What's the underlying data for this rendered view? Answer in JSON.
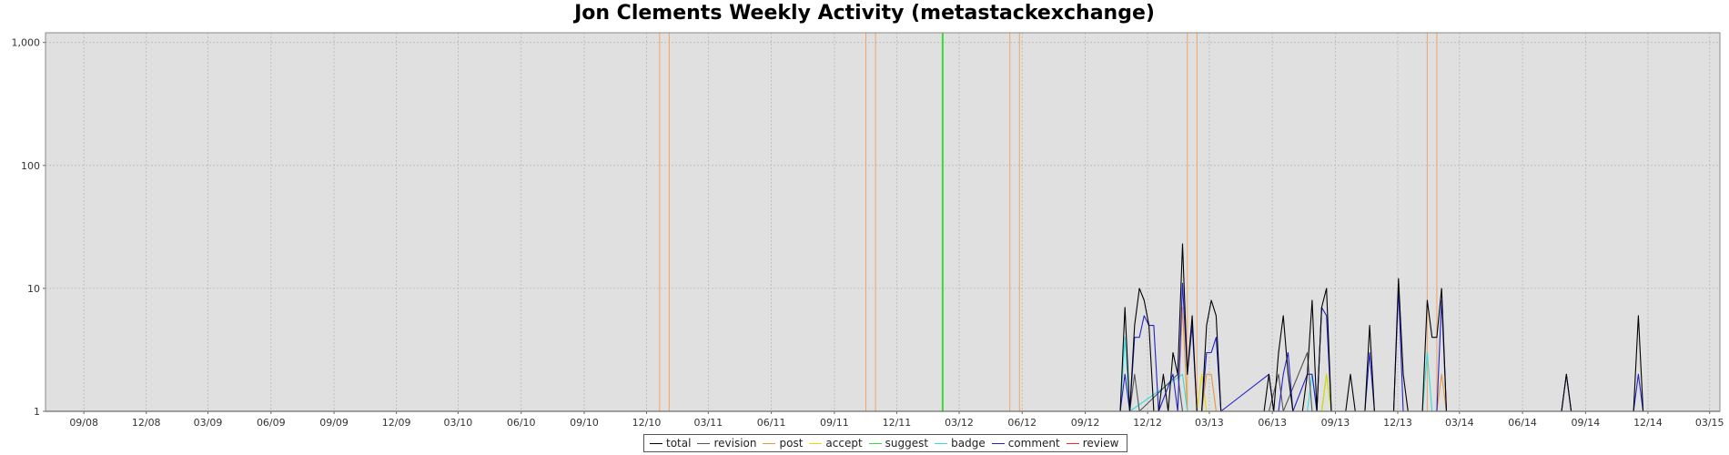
{
  "chart_data": {
    "type": "line",
    "title": "Jon Clements Weekly Activity (metastackexchange)",
    "xlabel": "",
    "ylabel": "",
    "y_scale": "log",
    "ylim": [
      1,
      1200
    ],
    "y_ticks": [
      {
        "value": 1,
        "label": "1"
      },
      {
        "value": 10,
        "label": "10"
      },
      {
        "value": 100,
        "label": "100"
      },
      {
        "value": 1000,
        "label": "1,000"
      }
    ],
    "x_range": [
      "2008-07-07",
      "2015-03-16"
    ],
    "x_ticks": [
      {
        "date": "2008-09-01",
        "label": "09/08"
      },
      {
        "date": "2008-12-01",
        "label": "12/08"
      },
      {
        "date": "2009-03-01",
        "label": "03/09"
      },
      {
        "date": "2009-06-01",
        "label": "06/09"
      },
      {
        "date": "2009-09-01",
        "label": "09/09"
      },
      {
        "date": "2009-12-01",
        "label": "12/09"
      },
      {
        "date": "2010-03-01",
        "label": "03/10"
      },
      {
        "date": "2010-06-01",
        "label": "06/10"
      },
      {
        "date": "2010-09-01",
        "label": "09/10"
      },
      {
        "date": "2010-12-01",
        "label": "12/10"
      },
      {
        "date": "2011-03-01",
        "label": "03/11"
      },
      {
        "date": "2011-06-01",
        "label": "06/11"
      },
      {
        "date": "2011-09-01",
        "label": "09/11"
      },
      {
        "date": "2011-12-01",
        "label": "12/11"
      },
      {
        "date": "2012-03-01",
        "label": "03/12"
      },
      {
        "date": "2012-06-01",
        "label": "06/12"
      },
      {
        "date": "2012-09-01",
        "label": "09/12"
      },
      {
        "date": "2012-12-01",
        "label": "12/12"
      },
      {
        "date": "2013-03-01",
        "label": "03/13"
      },
      {
        "date": "2013-06-01",
        "label": "06/13"
      },
      {
        "date": "2013-09-01",
        "label": "09/13"
      },
      {
        "date": "2013-12-01",
        "label": "12/13"
      },
      {
        "date": "2014-03-01",
        "label": "03/14"
      },
      {
        "date": "2014-06-01",
        "label": "06/14"
      },
      {
        "date": "2014-09-01",
        "label": "09/14"
      },
      {
        "date": "2014-12-01",
        "label": "12/14"
      },
      {
        "date": "2015-03-01",
        "label": "03/15"
      }
    ],
    "grid": true,
    "legend_position": "bottom",
    "background_color": "#e0e0e0",
    "markers": [
      {
        "date": "2010-12-20",
        "color": "#f4a460"
      },
      {
        "date": "2011-01-03",
        "color": "#f4a460"
      },
      {
        "date": "2011-10-17",
        "color": "#f4a460"
      },
      {
        "date": "2011-10-31",
        "color": "#f4a460"
      },
      {
        "date": "2012-02-06",
        "color": "#33dd33",
        "width": 2
      },
      {
        "date": "2012-05-14",
        "color": "#f4a460"
      },
      {
        "date": "2012-05-28",
        "color": "#f4a460"
      },
      {
        "date": "2013-01-28",
        "color": "#f4a460"
      },
      {
        "date": "2013-02-11",
        "color": "#f4a460"
      },
      {
        "date": "2014-01-13",
        "color": "#f4a460"
      },
      {
        "date": "2014-01-27",
        "color": "#f4a460"
      },
      {
        "date": "2015-03-16",
        "color": "#f4a460"
      }
    ],
    "series": [
      {
        "name": "total",
        "color": "#000000",
        "points": [
          [
            "2012-10-22",
            1
          ],
          [
            "2012-10-29",
            7
          ],
          [
            "2012-11-05",
            1
          ],
          [
            "2012-11-12",
            5
          ],
          [
            "2012-11-19",
            10
          ],
          [
            "2012-11-26",
            8
          ],
          [
            "2012-12-03",
            5
          ],
          [
            "2012-12-10",
            1
          ],
          [
            "2012-12-17",
            1
          ],
          [
            "2012-12-24",
            2
          ],
          [
            "2012-12-31",
            1
          ],
          [
            "2013-01-07",
            3
          ],
          [
            "2013-01-14",
            2
          ],
          [
            "2013-01-21",
            23
          ],
          [
            "2013-01-28",
            2
          ],
          [
            "2013-02-04",
            6
          ],
          [
            "2013-02-11",
            1
          ],
          [
            "2013-02-18",
            1
          ],
          [
            "2013-02-25",
            5
          ],
          [
            "2013-03-04",
            8
          ],
          [
            "2013-03-11",
            6
          ],
          [
            "2013-03-18",
            1
          ],
          [
            "2013-05-20",
            1
          ],
          [
            "2013-05-27",
            2
          ],
          [
            "2013-06-03",
            1
          ],
          [
            "2013-06-10",
            3
          ],
          [
            "2013-06-17",
            6
          ],
          [
            "2013-06-24",
            2
          ],
          [
            "2013-07-01",
            1
          ],
          [
            "2013-07-08",
            1
          ],
          [
            "2013-07-15",
            1
          ],
          [
            "2013-07-22",
            2
          ],
          [
            "2013-07-29",
            8
          ],
          [
            "2013-08-05",
            1
          ],
          [
            "2013-08-12",
            7
          ],
          [
            "2013-08-19",
            10
          ],
          [
            "2013-08-26",
            1
          ],
          [
            "2013-09-16",
            1
          ],
          [
            "2013-09-23",
            2
          ],
          [
            "2013-09-30",
            1
          ],
          [
            "2013-10-07",
            1
          ],
          [
            "2013-10-14",
            1
          ],
          [
            "2013-10-21",
            5
          ],
          [
            "2013-10-28",
            1
          ],
          [
            "2013-11-04",
            1
          ],
          [
            "2013-11-11",
            1
          ],
          [
            "2013-11-18",
            1
          ],
          [
            "2013-11-25",
            1
          ],
          [
            "2013-12-02",
            12
          ],
          [
            "2013-12-09",
            2
          ],
          [
            "2013-12-16",
            1
          ],
          [
            "2013-12-23",
            1
          ],
          [
            "2013-12-30",
            1
          ],
          [
            "2014-01-06",
            1
          ],
          [
            "2014-01-13",
            8
          ],
          [
            "2014-01-20",
            4
          ],
          [
            "2014-01-27",
            4
          ],
          [
            "2014-02-03",
            10
          ],
          [
            "2014-02-10",
            1
          ],
          [
            "2014-07-28",
            1
          ],
          [
            "2014-08-04",
            2
          ],
          [
            "2014-08-11",
            1
          ],
          [
            "2014-11-10",
            1
          ],
          [
            "2014-11-17",
            6
          ],
          [
            "2014-11-24",
            1
          ]
        ]
      },
      {
        "name": "revision",
        "color": "#555555",
        "points": [
          [
            "2012-10-29",
            1
          ],
          [
            "2012-11-05",
            1
          ],
          [
            "2012-11-12",
            2
          ],
          [
            "2012-11-19",
            1
          ],
          [
            "2013-01-14",
            2
          ],
          [
            "2013-01-21",
            1
          ],
          [
            "2013-05-27",
            1
          ],
          [
            "2013-06-10",
            2
          ],
          [
            "2013-06-17",
            1
          ],
          [
            "2013-07-22",
            3
          ],
          [
            "2013-07-29",
            1
          ]
        ]
      },
      {
        "name": "post",
        "color": "#e39a3b",
        "points": [
          [
            "2013-01-14",
            1
          ],
          [
            "2013-01-21",
            7
          ],
          [
            "2013-01-28",
            1
          ],
          [
            "2013-02-18",
            1
          ],
          [
            "2013-02-25",
            2
          ],
          [
            "2013-03-04",
            2
          ],
          [
            "2013-03-11",
            1
          ],
          [
            "2014-01-27",
            1
          ],
          [
            "2014-02-03",
            2
          ],
          [
            "2014-02-10",
            1
          ]
        ]
      },
      {
        "name": "accept",
        "color": "#dddd00",
        "points": [
          [
            "2013-02-11",
            1
          ],
          [
            "2013-02-18",
            2
          ],
          [
            "2013-02-25",
            1
          ],
          [
            "2013-08-12",
            1
          ],
          [
            "2013-08-19",
            2
          ],
          [
            "2013-08-26",
            1
          ]
        ]
      },
      {
        "name": "suggest",
        "color": "#33dd33",
        "points": [
          [
            "2013-08-12",
            1
          ],
          [
            "2013-08-19",
            2
          ],
          [
            "2013-08-26",
            1
          ]
        ]
      },
      {
        "name": "badge",
        "color": "#33dddd",
        "points": [
          [
            "2012-10-22",
            1
          ],
          [
            "2012-10-29",
            4
          ],
          [
            "2012-11-05",
            1
          ],
          [
            "2013-01-21",
            2
          ],
          [
            "2013-01-28",
            1
          ],
          [
            "2013-07-22",
            1
          ],
          [
            "2013-07-29",
            2
          ],
          [
            "2013-08-05",
            1
          ],
          [
            "2014-01-06",
            1
          ],
          [
            "2014-01-13",
            3
          ],
          [
            "2014-01-20",
            1
          ]
        ]
      },
      {
        "name": "comment",
        "color": "#2222cc",
        "points": [
          [
            "2012-10-22",
            1
          ],
          [
            "2012-10-29",
            2
          ],
          [
            "2012-11-05",
            1
          ],
          [
            "2012-11-12",
            4
          ],
          [
            "2012-11-19",
            4
          ],
          [
            "2012-11-26",
            6
          ],
          [
            "2012-12-03",
            5
          ],
          [
            "2012-12-10",
            5
          ],
          [
            "2012-12-17",
            1
          ],
          [
            "2013-01-07",
            2
          ],
          [
            "2013-01-14",
            1
          ],
          [
            "2013-01-21",
            11
          ],
          [
            "2013-01-28",
            2
          ],
          [
            "2013-02-04",
            5
          ],
          [
            "2013-02-11",
            1
          ],
          [
            "2013-02-18",
            1
          ],
          [
            "2013-02-25",
            3
          ],
          [
            "2013-03-04",
            3
          ],
          [
            "2013-03-11",
            4
          ],
          [
            "2013-03-18",
            1
          ],
          [
            "2013-05-27",
            2
          ],
          [
            "2013-06-03",
            1
          ],
          [
            "2013-06-10",
            1
          ],
          [
            "2013-06-17",
            2
          ],
          [
            "2013-06-24",
            3
          ],
          [
            "2013-07-01",
            1
          ],
          [
            "2013-07-22",
            2
          ],
          [
            "2013-07-29",
            2
          ],
          [
            "2013-08-05",
            1
          ],
          [
            "2013-08-12",
            7
          ],
          [
            "2013-08-19",
            6
          ],
          [
            "2013-08-26",
            1
          ],
          [
            "2013-10-14",
            1
          ],
          [
            "2013-10-21",
            3
          ],
          [
            "2013-10-28",
            1
          ],
          [
            "2013-11-25",
            1
          ],
          [
            "2013-12-02",
            10
          ],
          [
            "2013-12-09",
            1
          ],
          [
            "2014-01-27",
            1
          ],
          [
            "2014-02-03",
            8
          ],
          [
            "2014-02-10",
            1
          ],
          [
            "2014-07-28",
            1
          ],
          [
            "2014-08-04",
            2
          ],
          [
            "2014-08-11",
            1
          ],
          [
            "2014-11-10",
            1
          ],
          [
            "2014-11-17",
            2
          ],
          [
            "2014-11-24",
            1
          ]
        ]
      },
      {
        "name": "review",
        "color": "#ff2222",
        "points": []
      }
    ]
  }
}
